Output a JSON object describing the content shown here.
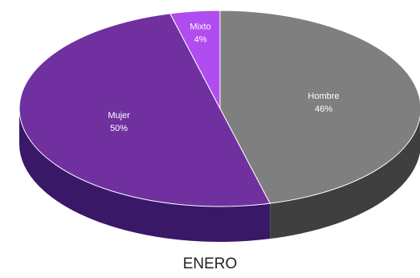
{
  "chart_data": {
    "type": "pie",
    "title": "ENERO",
    "slices": [
      {
        "label": "Hombre",
        "value": 46,
        "value_label": "46%",
        "color": "#7f7f7f",
        "side_color": "#3f3f3f"
      },
      {
        "label": "Mujer",
        "value": 50,
        "value_label": "50%",
        "color": "#7030a0",
        "side_color": "#3a1868"
      },
      {
        "label": "Mixto",
        "value": 4,
        "value_label": "4%",
        "color": "#b14cf0",
        "side_color": "#6a2a8f"
      }
    ],
    "start_angle_deg": -90,
    "direction": "clockwise",
    "style": "3d"
  }
}
